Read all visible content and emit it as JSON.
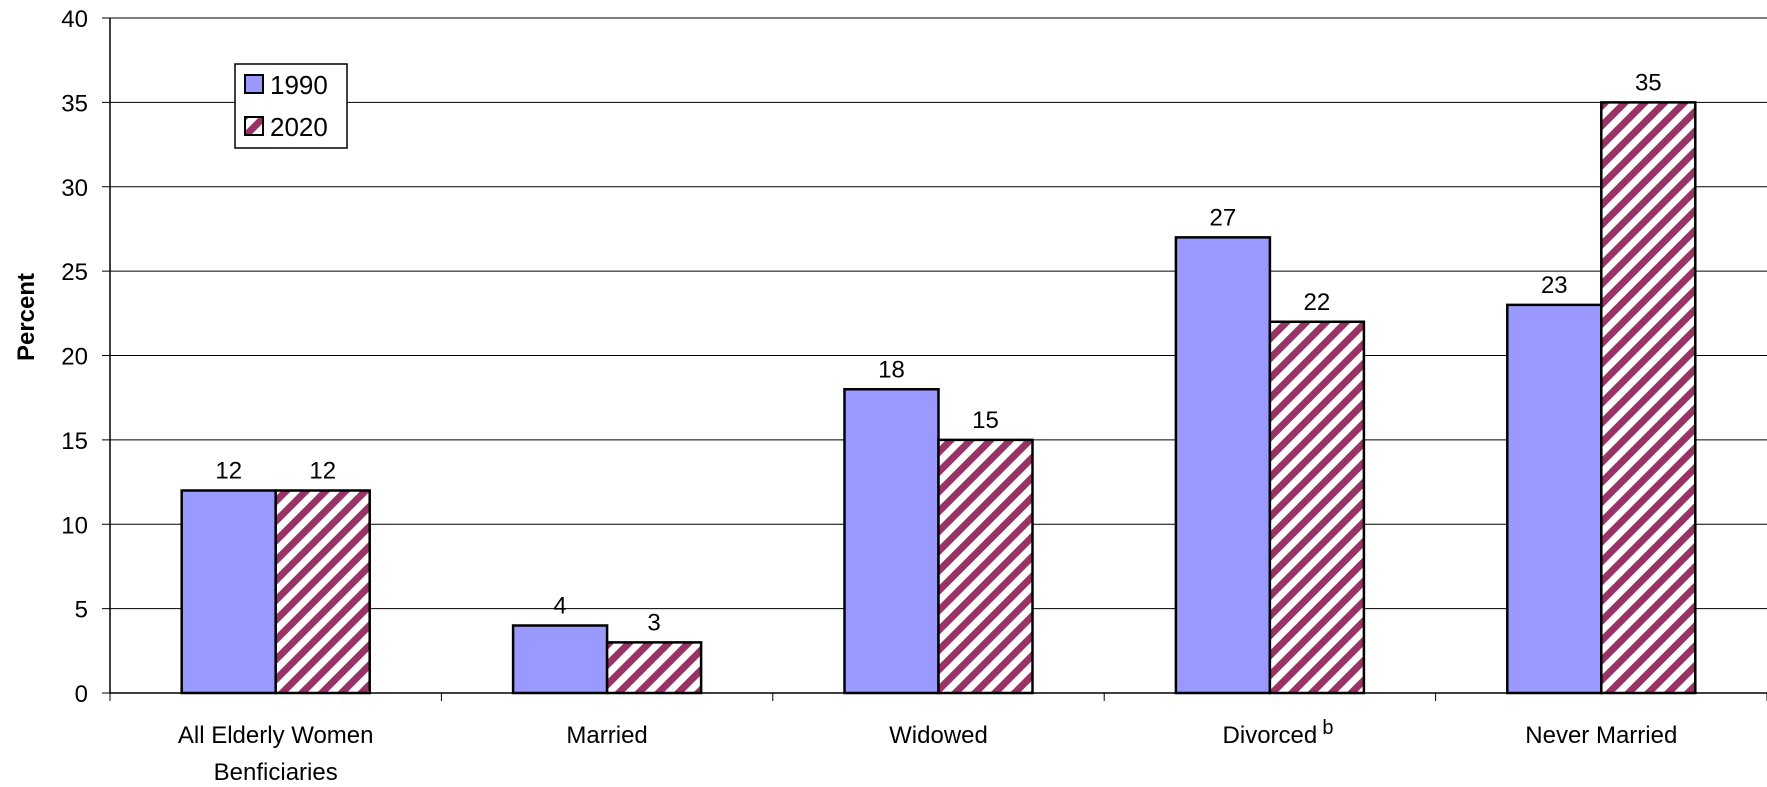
{
  "chart_data": {
    "type": "bar",
    "categories": [
      "All Elderly Women Benficiaries",
      "Married",
      "Widowed",
      "Divorced",
      "Never Married"
    ],
    "category_lines": [
      [
        "All Elderly Women",
        "Benficiaries"
      ],
      [
        "Married"
      ],
      [
        "Widowed"
      ],
      [
        "Divorced"
      ],
      [
        "Never Married"
      ]
    ],
    "category_superscripts": [
      "",
      "",
      "",
      "b",
      ""
    ],
    "series": [
      {
        "name": "1990",
        "values": [
          12,
          4,
          18,
          27,
          23
        ],
        "color": "#9999ff",
        "pattern": "solid"
      },
      {
        "name": "2020",
        "values": [
          12,
          3,
          15,
          22,
          35
        ],
        "color": "#993366",
        "pattern": "diagonal-stripes"
      }
    ],
    "ylabel": "Percent",
    "ylim": [
      0,
      40
    ],
    "yticks": [
      0,
      5,
      10,
      15,
      20,
      25,
      30,
      35,
      40
    ],
    "grid": true,
    "legend_position": "top-left"
  }
}
